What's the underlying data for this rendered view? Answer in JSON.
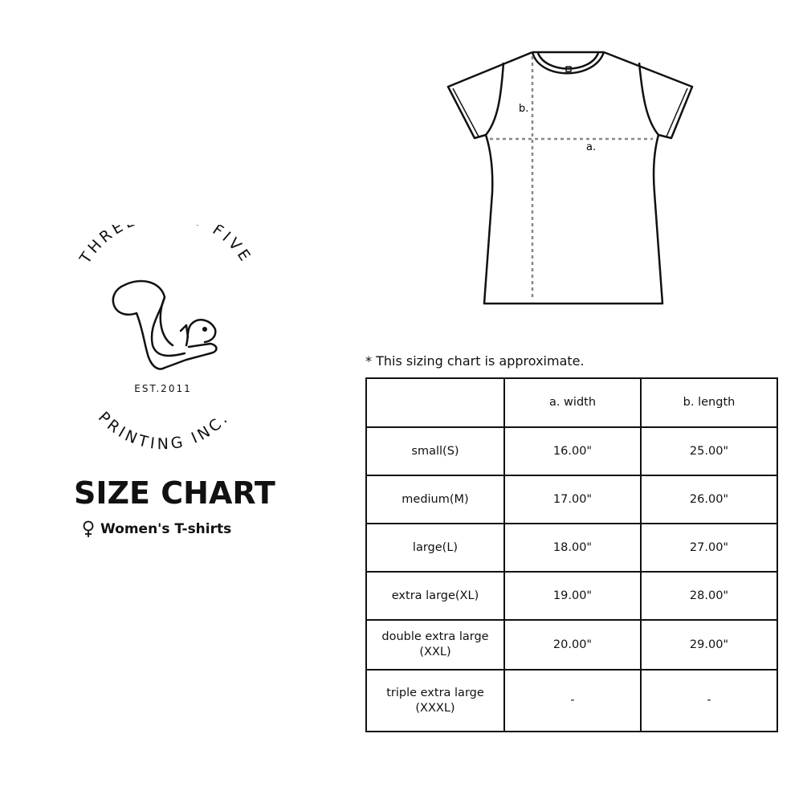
{
  "logo": {
    "top_text": "THREE SIXTY FIVE",
    "bottom_text": "PRINTING INC.",
    "established": "EST.2011"
  },
  "title": "SIZE CHART",
  "subtitle": {
    "icon": "female-symbol-icon",
    "text": "Women's T-shirts"
  },
  "diagram": {
    "width_label": "a.",
    "length_label": "b."
  },
  "note": "* This sizing chart is approximate.",
  "table": {
    "headers": [
      "",
      "a. width",
      "b. length"
    ],
    "rows": [
      {
        "size": "small(S)",
        "width": "16.00\"",
        "length": "25.00\""
      },
      {
        "size": "medium(M)",
        "width": "17.00\"",
        "length": "26.00\""
      },
      {
        "size": "large(L)",
        "width": "18.00\"",
        "length": "27.00\""
      },
      {
        "size": "extra large(XL)",
        "width": "19.00\"",
        "length": "28.00\""
      },
      {
        "size": "double extra large\n(XXL)",
        "width": "20.00\"",
        "length": "29.00\""
      },
      {
        "size": "triple extra large\n(XXXL)",
        "width": "-",
        "length": "-"
      }
    ]
  }
}
